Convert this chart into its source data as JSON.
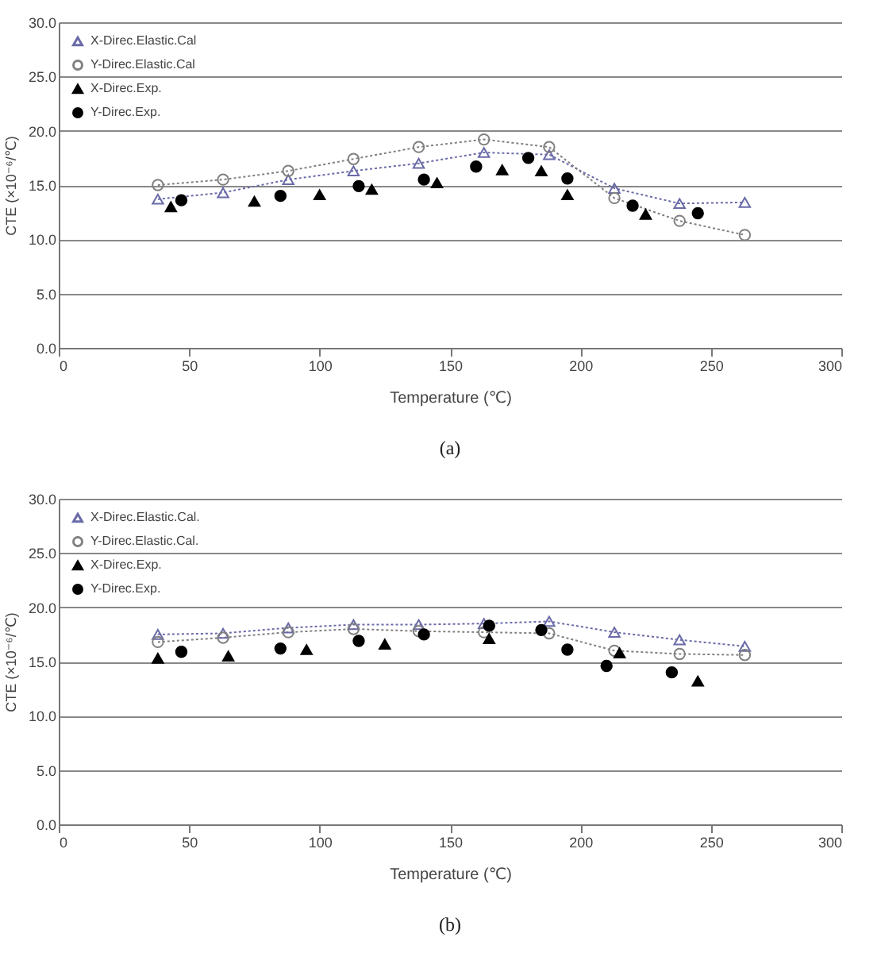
{
  "chart_data": [
    {
      "type": "line",
      "xlabel": "Temperature (℃)",
      "ylabel": "CTE (×10⁻⁶/℃)",
      "annotations": [
        "(a)"
      ],
      "xlim": [
        0,
        300
      ],
      "xticks": [
        0,
        50,
        100,
        150,
        200,
        250,
        300
      ],
      "ylim": [
        0,
        30
      ],
      "yticks": [
        {
          "value": 0,
          "label": "0.0"
        },
        {
          "value": 5,
          "label": "5.0"
        },
        {
          "value": 10,
          "label": "10.0"
        },
        {
          "value": 15,
          "label": "15.0"
        },
        {
          "value": 20,
          "label": "20.0"
        },
        {
          "value": 25,
          "label": "25.0"
        },
        {
          "value": 30,
          "label": "30.0"
        }
      ],
      "grid": "y",
      "legend": "top left",
      "line_style": "dotted",
      "series": [
        {
          "name": "X-Direc.Elastic.Cal",
          "type": "line",
          "marker": "triangle",
          "color": "#6a6aa8",
          "x": [
            38,
            63,
            88,
            113,
            138,
            163,
            188,
            213,
            238,
            263
          ],
          "values": [
            13.7,
            14.3,
            15.5,
            16.3,
            17.0,
            18.0,
            17.8,
            14.7,
            13.3,
            13.4
          ]
        },
        {
          "name": "Y-Direc.Elastic.Cal",
          "type": "line",
          "marker": "circle",
          "color": "#808080",
          "x": [
            38,
            63,
            88,
            113,
            138,
            163,
            188,
            213,
            238,
            263
          ],
          "values": [
            15.0,
            15.5,
            16.3,
            17.4,
            18.5,
            19.2,
            18.5,
            13.8,
            11.7,
            10.4
          ]
        },
        {
          "name": "X-Direc.Exp.",
          "type": "scatter",
          "marker": "triangle",
          "color": "#000000",
          "x": [
            43,
            75,
            100,
            120,
            145,
            170,
            185,
            195,
            225
          ],
          "values": [
            13.0,
            13.5,
            14.1,
            14.6,
            15.2,
            16.4,
            16.3,
            14.1,
            12.3
          ]
        },
        {
          "name": "Y-Direc.Exp.",
          "type": "scatter",
          "marker": "circle",
          "color": "#000000",
          "x": [
            47,
            85,
            115,
            140,
            160,
            180,
            195,
            220,
            245
          ],
          "values": [
            13.6,
            14.0,
            14.9,
            15.5,
            16.7,
            17.5,
            15.6,
            13.1,
            12.4
          ]
        }
      ]
    },
    {
      "type": "line",
      "xlabel": "Temperature (℃)",
      "ylabel": "CTE (×10⁻⁶/℃)",
      "annotations": [
        "(b)"
      ],
      "xlim": [
        0,
        300
      ],
      "xticks": [
        0,
        50,
        100,
        150,
        200,
        250,
        300
      ],
      "ylim": [
        0,
        30
      ],
      "yticks": [
        {
          "value": 0,
          "label": "0.0"
        },
        {
          "value": 5,
          "label": "5.0"
        },
        {
          "value": 10,
          "label": "10.0"
        },
        {
          "value": 15,
          "label": "15.0"
        },
        {
          "value": 20,
          "label": "20.0"
        },
        {
          "value": 25,
          "label": "25.0"
        },
        {
          "value": 30,
          "label": "30.0"
        }
      ],
      "grid": "y",
      "legend": "top left",
      "line_style": "dotted",
      "series": [
        {
          "name": "X-Direc.Elastic.Cal.",
          "type": "line",
          "marker": "triangle",
          "color": "#6a6aa8",
          "x": [
            38,
            63,
            88,
            113,
            138,
            163,
            188,
            213,
            238,
            263
          ],
          "values": [
            17.5,
            17.6,
            18.1,
            18.4,
            18.4,
            18.5,
            18.7,
            17.7,
            17.0,
            16.4
          ]
        },
        {
          "name": "Y-Direc.Elastic.Cal.",
          "type": "line",
          "marker": "circle",
          "color": "#808080",
          "x": [
            38,
            63,
            88,
            113,
            138,
            163,
            188,
            213,
            238,
            263
          ],
          "values": [
            16.8,
            17.2,
            17.7,
            18.0,
            17.8,
            17.7,
            17.6,
            16.0,
            15.7,
            15.6
          ]
        },
        {
          "name": "X-Direc.Exp.",
          "type": "scatter",
          "marker": "triangle",
          "color": "#000000",
          "x": [
            38,
            65,
            95,
            125,
            165,
            215,
            245
          ],
          "values": [
            15.3,
            15.5,
            16.1,
            16.6,
            17.1,
            15.8,
            13.2
          ]
        },
        {
          "name": "Y-Direc.Exp.",
          "type": "scatter",
          "marker": "circle",
          "color": "#000000",
          "x": [
            47,
            85,
            115,
            140,
            165,
            185,
            195,
            210,
            235
          ],
          "values": [
            15.9,
            16.2,
            16.9,
            17.5,
            18.3,
            17.9,
            16.1,
            14.6,
            14.0
          ]
        }
      ]
    }
  ]
}
